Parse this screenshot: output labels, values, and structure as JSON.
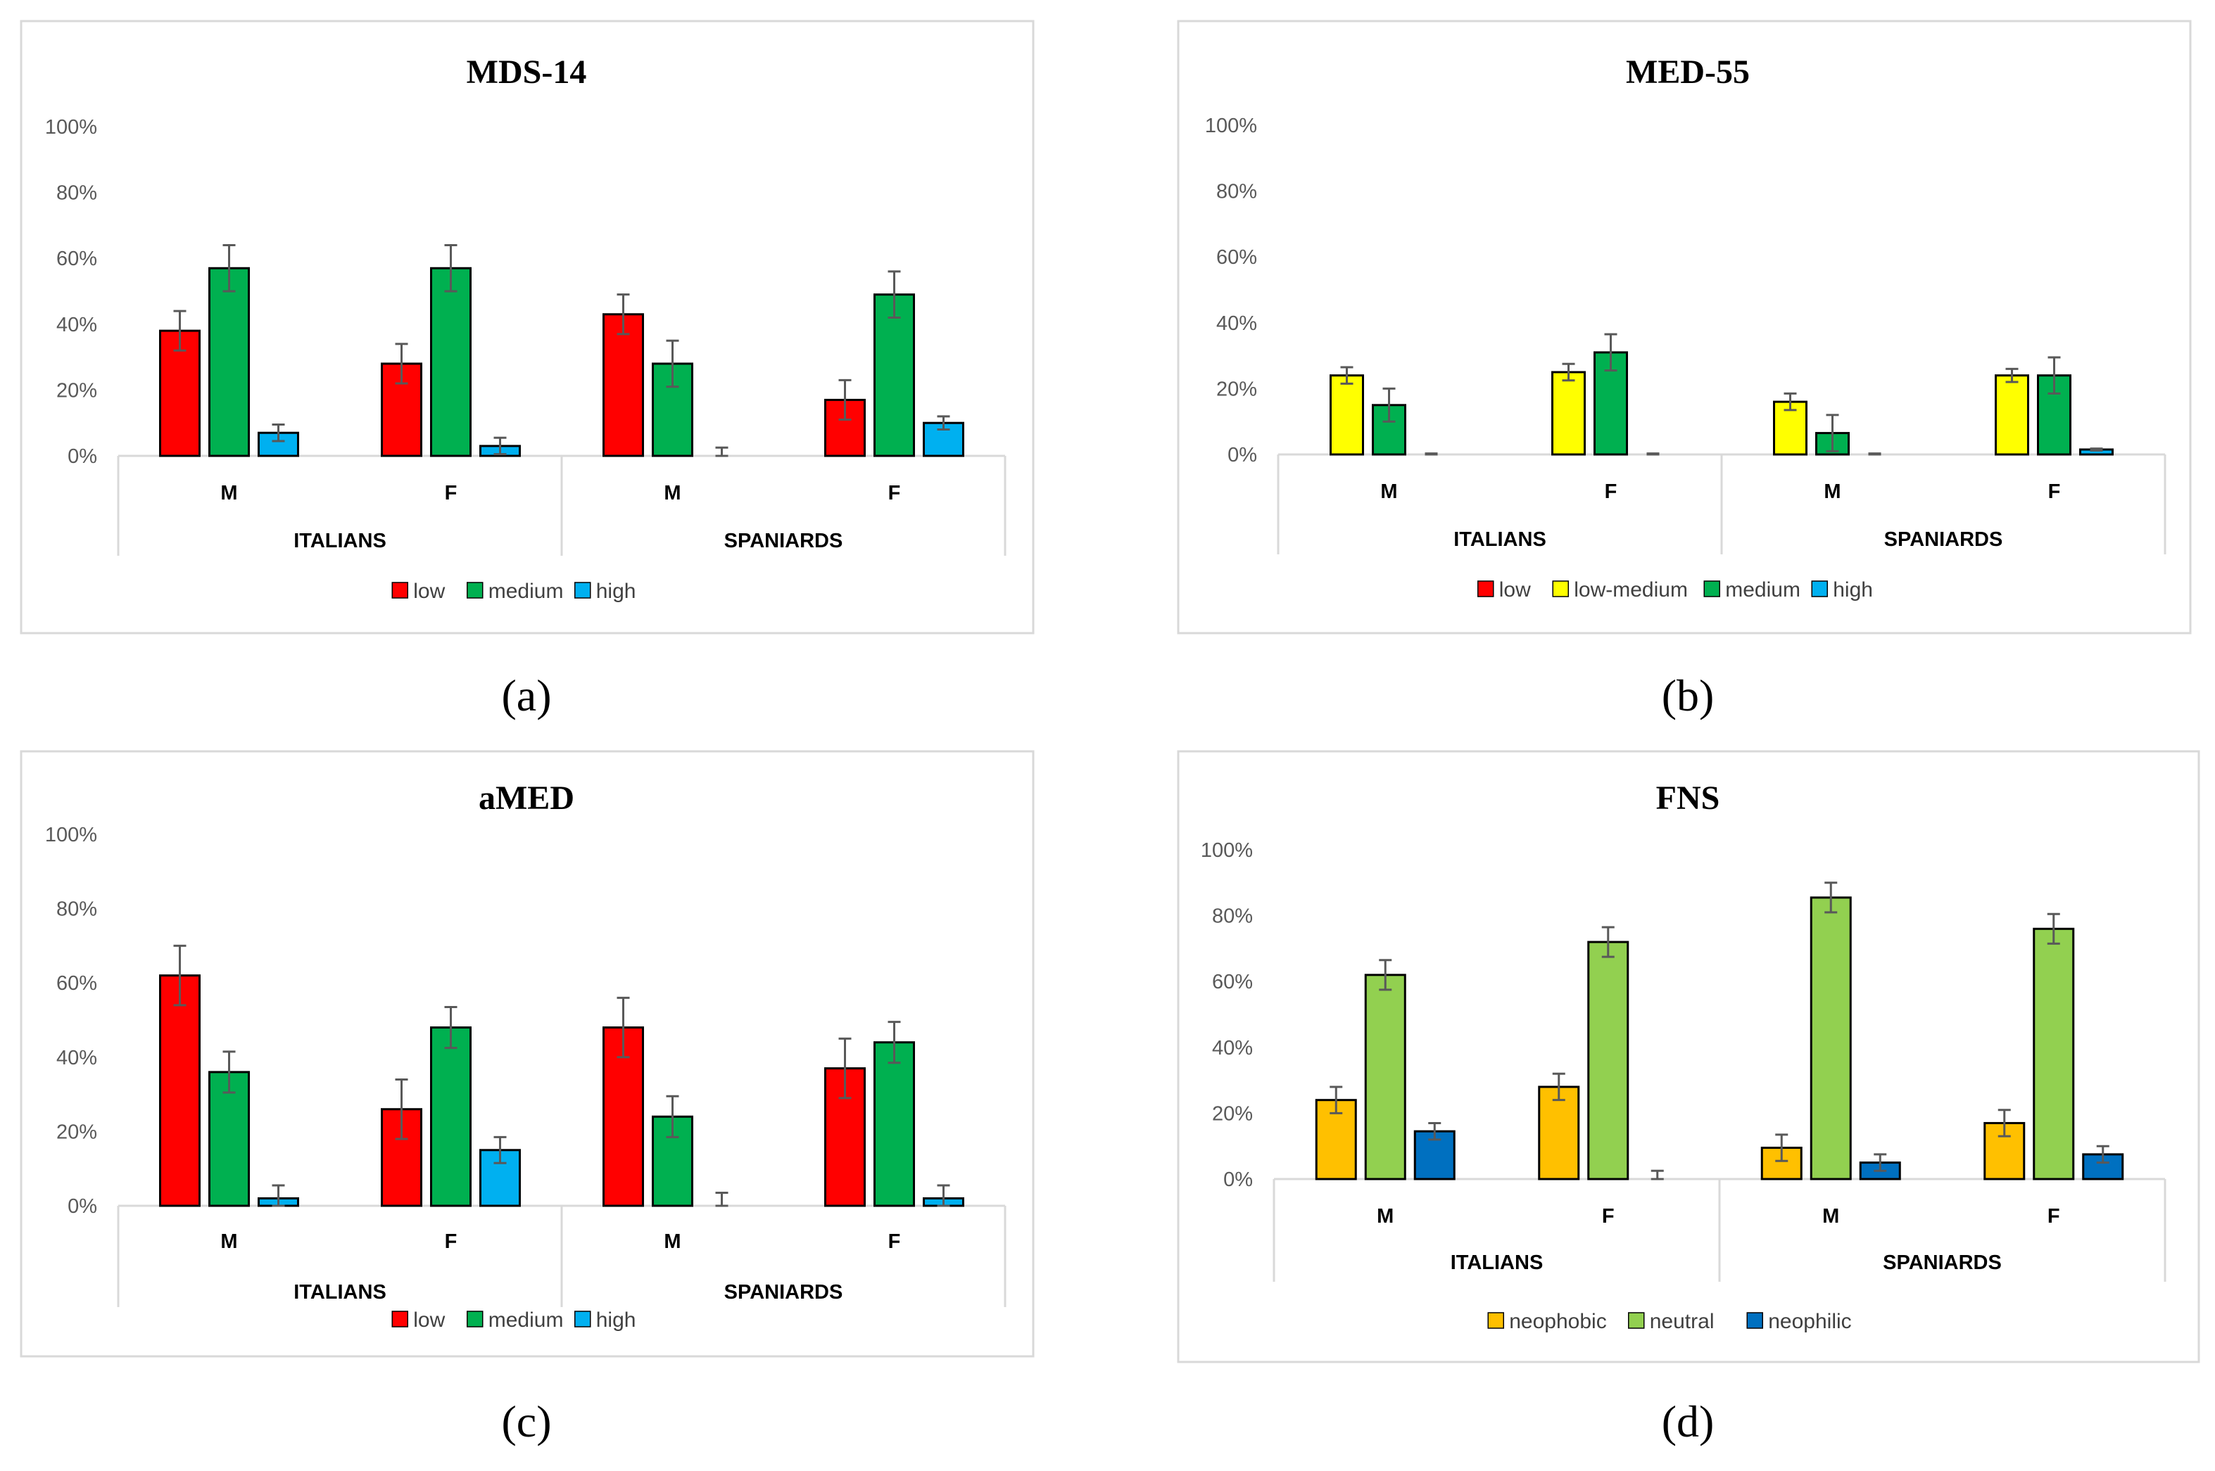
{
  "colors": {
    "low": "#ff0000",
    "medium": "#00b050",
    "high": "#00b0f0",
    "low_medium": "#ffff00",
    "neophobic": "#ffc000",
    "neutral": "#92d050",
    "neophilic": "#0070c0"
  },
  "chart_data": [
    {
      "type": "bar",
      "title": "MDS-14",
      "caption": "(a)",
      "y_ticks": [
        "0%",
        "20%",
        "40%",
        "60%",
        "80%",
        "100%"
      ],
      "ylim": [
        0,
        100
      ],
      "groups": [
        {
          "label": "ITALIANS",
          "categories": [
            "M",
            "F"
          ]
        },
        {
          "label": "SPANIARDS",
          "categories": [
            "M",
            "F"
          ]
        }
      ],
      "series": [
        {
          "name": "low",
          "color": "#ff0000",
          "values": [
            38,
            28,
            43,
            17
          ],
          "errors": [
            6,
            6,
            6,
            6
          ]
        },
        {
          "name": "medium",
          "color": "#00b050",
          "values": [
            57,
            57,
            28,
            49
          ],
          "errors": [
            7,
            7,
            7,
            7
          ]
        },
        {
          "name": "high",
          "color": "#00b0f0",
          "values": [
            7,
            3,
            0,
            10
          ],
          "errors": [
            2.5,
            2.5,
            2.5,
            2
          ]
        }
      ]
    },
    {
      "type": "bar",
      "title": "MED-55",
      "caption": "(b)",
      "y_ticks": [
        "0%",
        "20%",
        "40%",
        "60%",
        "80%",
        "100%"
      ],
      "ylim": [
        0,
        100
      ],
      "groups": [
        {
          "label": "ITALIANS",
          "categories": [
            "M",
            "F"
          ]
        },
        {
          "label": "SPANIARDS",
          "categories": [
            "M",
            "F"
          ]
        }
      ],
      "series": [
        {
          "name": "low",
          "color": "#ff0000",
          "values": [
            0,
            0,
            0,
            0
          ],
          "errors": [
            0,
            0,
            0,
            0
          ]
        },
        {
          "name": "low-medium",
          "color": "#ffff00",
          "values": [
            24,
            25,
            16,
            24
          ],
          "errors": [
            2.5,
            2.5,
            2.5,
            2
          ]
        },
        {
          "name": "medium",
          "color": "#00b050",
          "values": [
            15,
            31,
            6.5,
            24
          ],
          "errors": [
            5,
            5.5,
            5.5,
            5.5
          ]
        },
        {
          "name": "high",
          "color": "#00b0f0",
          "values": [
            0,
            0,
            0,
            1.5
          ],
          "errors": [
            0.3,
            0.3,
            0.3,
            0.3
          ]
        }
      ]
    },
    {
      "type": "bar",
      "title": "aMED",
      "caption": "(c)",
      "y_ticks": [
        "0%",
        "20%",
        "40%",
        "60%",
        "80%",
        "100%"
      ],
      "ylim": [
        0,
        100
      ],
      "groups": [
        {
          "label": "ITALIANS",
          "categories": [
            "M",
            "F"
          ]
        },
        {
          "label": "SPANIARDS",
          "categories": [
            "M",
            "F"
          ]
        }
      ],
      "series": [
        {
          "name": "low",
          "color": "#ff0000",
          "values": [
            62,
            26,
            48,
            37
          ],
          "errors": [
            8,
            8,
            8,
            8
          ]
        },
        {
          "name": "medium",
          "color": "#00b050",
          "values": [
            36,
            48,
            24,
            44
          ],
          "errors": [
            5.5,
            5.5,
            5.5,
            5.5
          ]
        },
        {
          "name": "high",
          "color": "#00b0f0",
          "values": [
            2,
            15,
            0,
            2
          ],
          "errors": [
            3.5,
            3.5,
            3.5,
            3.5
          ]
        }
      ]
    },
    {
      "type": "bar",
      "title": "FNS",
      "caption": "(d)",
      "y_ticks": [
        "0%",
        "20%",
        "40%",
        "60%",
        "80%",
        "100%"
      ],
      "ylim": [
        0,
        100
      ],
      "groups": [
        {
          "label": "ITALIANS",
          "categories": [
            "M",
            "F"
          ]
        },
        {
          "label": "SPANIARDS",
          "categories": [
            "M",
            "F"
          ]
        }
      ],
      "series": [
        {
          "name": "neophobic",
          "color": "#ffc000",
          "values": [
            24,
            28,
            9.5,
            17
          ],
          "errors": [
            4,
            4,
            4,
            4
          ]
        },
        {
          "name": "neutral",
          "color": "#92d050",
          "values": [
            62,
            72,
            85.5,
            76
          ],
          "errors": [
            4.5,
            4.5,
            4.5,
            4.5
          ]
        },
        {
          "name": "neophilic",
          "color": "#0070c0",
          "values": [
            14.5,
            0,
            5,
            7.5
          ],
          "errors": [
            2.5,
            2.5,
            2.5,
            2.5
          ]
        }
      ]
    }
  ]
}
